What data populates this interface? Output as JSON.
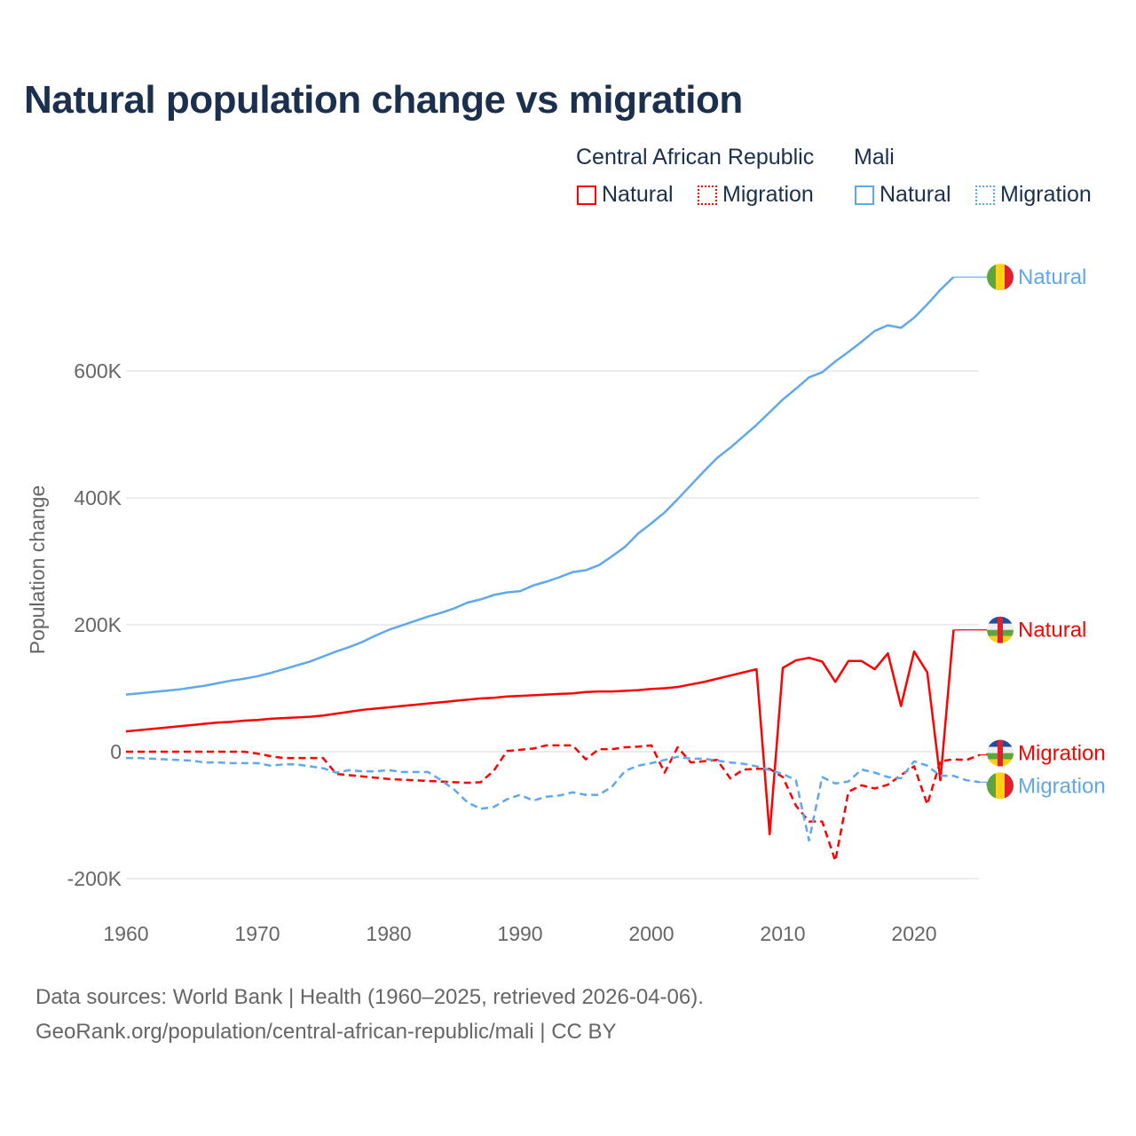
{
  "title": "Natural population change vs migration",
  "legend": {
    "groups": [
      {
        "name": "Central African Republic",
        "items": [
          "Natural",
          "Migration"
        ],
        "color": "#ff0000"
      },
      {
        "name": "Mali",
        "items": [
          "Natural",
          "Migration"
        ],
        "color": "#5fa8ec"
      }
    ]
  },
  "footer": {
    "line1": "Data sources: World Bank | Health (1960–2025, retrieved 2026-04-06).",
    "line2": "GeoRank.org/population/central-african-republic/mali | CC BY"
  },
  "chart_data": {
    "type": "line",
    "title": "Natural population change vs migration",
    "xlabel": "",
    "ylabel": "Population change",
    "xlim": [
      1960,
      2025
    ],
    "ylim": [
      -200000,
      750000
    ],
    "x_ticks": [
      "1960",
      "1970",
      "1980",
      "1990",
      "2000",
      "2010",
      "2020"
    ],
    "y_ticks": [
      {
        "v": -200000,
        "label": "-200K"
      },
      {
        "v": 0,
        "label": "0"
      },
      {
        "v": 200000,
        "label": "200K"
      },
      {
        "v": 400000,
        "label": "400K"
      },
      {
        "v": 600000,
        "label": "600K"
      }
    ],
    "grid": true,
    "series": [
      {
        "name": "Mali Natural",
        "country": "Mali",
        "label": "Natural",
        "color": "#5fa8ec",
        "dash": false,
        "start": 1960,
        "values": [
          90000,
          92000,
          94000,
          96000,
          98000,
          101000,
          104000,
          108000,
          112000,
          115000,
          119000,
          124000,
          130000,
          136000,
          142000,
          150000,
          158000,
          165000,
          173000,
          183000,
          192000,
          199000,
          206000,
          213000,
          219000,
          226000,
          235000,
          240000,
          247000,
          251000,
          253000,
          262000,
          268000,
          275000,
          283000,
          286000,
          294000,
          308000,
          323000,
          344000,
          360000,
          377000,
          398000,
          420000,
          442000,
          463000,
          479000,
          497000,
          515000,
          535000,
          555000,
          572000,
          590000,
          598000,
          615000,
          630000,
          646000,
          663000,
          672000,
          668000,
          684000,
          705000,
          728000,
          748000
        ]
      },
      {
        "name": "CAR Natural",
        "country": "Central African Republic",
        "label": "Natural",
        "color": "#ff0000",
        "dash": false,
        "start": 1960,
        "values": [
          32000,
          34000,
          36000,
          38000,
          40000,
          42000,
          44000,
          46000,
          47000,
          49000,
          50000,
          52000,
          53000,
          54000,
          55000,
          57000,
          60000,
          63000,
          66000,
          68000,
          70000,
          72000,
          74000,
          76000,
          78000,
          80000,
          82000,
          84000,
          85000,
          87000,
          88000,
          89000,
          90000,
          91000,
          92000,
          94000,
          95000,
          95000,
          96000,
          97000,
          99000,
          100000,
          102000,
          106000,
          110000,
          115000,
          120000,
          125000,
          130000,
          -130000,
          132000,
          144000,
          148000,
          142000,
          110000,
          143000,
          143000,
          130000,
          155000,
          72000,
          158000,
          125000,
          -45000,
          192000
        ]
      },
      {
        "name": "CAR Migration",
        "country": "Central African Republic",
        "label": "Migration",
        "color": "#ff0000",
        "dash": true,
        "start": 1960,
        "values": [
          0,
          0,
          0,
          0,
          0,
          0,
          0,
          0,
          0,
          0,
          -3000,
          -7000,
          -10000,
          -10000,
          -10000,
          -10000,
          -35000,
          -37000,
          -39000,
          -41000,
          -43000,
          -44000,
          -45000,
          -46000,
          -47000,
          -48000,
          -49000,
          -48000,
          -30000,
          1000,
          3000,
          5000,
          10000,
          10000,
          10000,
          -12000,
          4000,
          4000,
          7000,
          8000,
          10000,
          -33000,
          7000,
          -17000,
          -15000,
          -13000,
          -42000,
          -28000,
          -27000,
          -27000,
          -40000,
          -85000,
          -110000,
          -110000,
          -172000,
          -63000,
          -53000,
          -58000,
          -52000,
          -37000,
          -23000,
          -83000,
          -15000,
          -12000,
          -13000,
          -5000
        ]
      },
      {
        "name": "Mali Migration",
        "country": "Mali",
        "label": "Migration",
        "color": "#5fa8ec",
        "dash": true,
        "start": 1960,
        "values": [
          -10000,
          -10000,
          -11000,
          -12000,
          -13000,
          -14000,
          -17000,
          -17000,
          -18000,
          -18000,
          -18000,
          -22000,
          -20000,
          -20000,
          -23000,
          -26000,
          -33000,
          -29000,
          -31000,
          -31000,
          -29000,
          -32000,
          -32000,
          -32000,
          -45000,
          -60000,
          -80000,
          -90000,
          -87000,
          -75000,
          -68000,
          -77000,
          -71000,
          -69000,
          -64000,
          -68000,
          -68000,
          -55000,
          -30000,
          -22000,
          -18000,
          -13000,
          -8000,
          -11000,
          -11000,
          -14000,
          -17000,
          -19000,
          -23000,
          -29000,
          -35000,
          -45000,
          -140000,
          -40000,
          -50000,
          -47000,
          -28000,
          -33000,
          -40000,
          -42000,
          -15000,
          -22000,
          -38000,
          -38000,
          -45000,
          -48000
        ]
      }
    ]
  }
}
